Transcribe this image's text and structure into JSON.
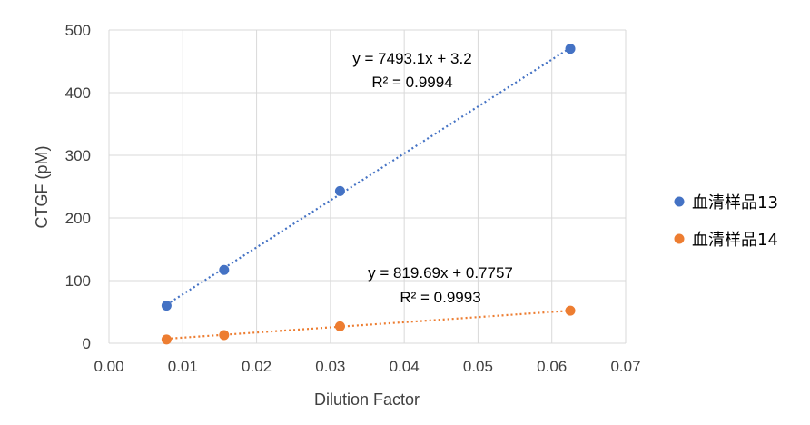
{
  "chart_data": {
    "type": "scatter",
    "title": "",
    "xlabel": "Dilution Factor",
    "ylabel": "CTGF (pM)",
    "xlim": [
      0,
      0.07
    ],
    "ylim": [
      0,
      500
    ],
    "xticks": [
      "0.00",
      "0.01",
      "0.02",
      "0.03",
      "0.04",
      "0.05",
      "0.06",
      "0.07"
    ],
    "yticks": [
      "0",
      "100",
      "200",
      "300",
      "400",
      "500"
    ],
    "grid": true,
    "legend_position": "right",
    "series": [
      {
        "name": "血清样品13",
        "color": "#4472C4",
        "x": [
          0.0078,
          0.0156,
          0.0313,
          0.0625
        ],
        "y": [
          60,
          117,
          243,
          470
        ],
        "trendline": {
          "slope": 7493.1,
          "intercept": 3.2
        },
        "equation": "y = 7493.1x + 3.2",
        "r2": "R² = 0.9994"
      },
      {
        "name": "血清样品14",
        "color": "#ED7D31",
        "x": [
          0.0078,
          0.0156,
          0.0313,
          0.0625
        ],
        "y": [
          6,
          13,
          27,
          52
        ],
        "trendline": {
          "slope": 819.69,
          "intercept": 0.7757
        },
        "equation": "y = 819.69x + 0.7757",
        "r2": "R² = 0.9993"
      }
    ]
  }
}
